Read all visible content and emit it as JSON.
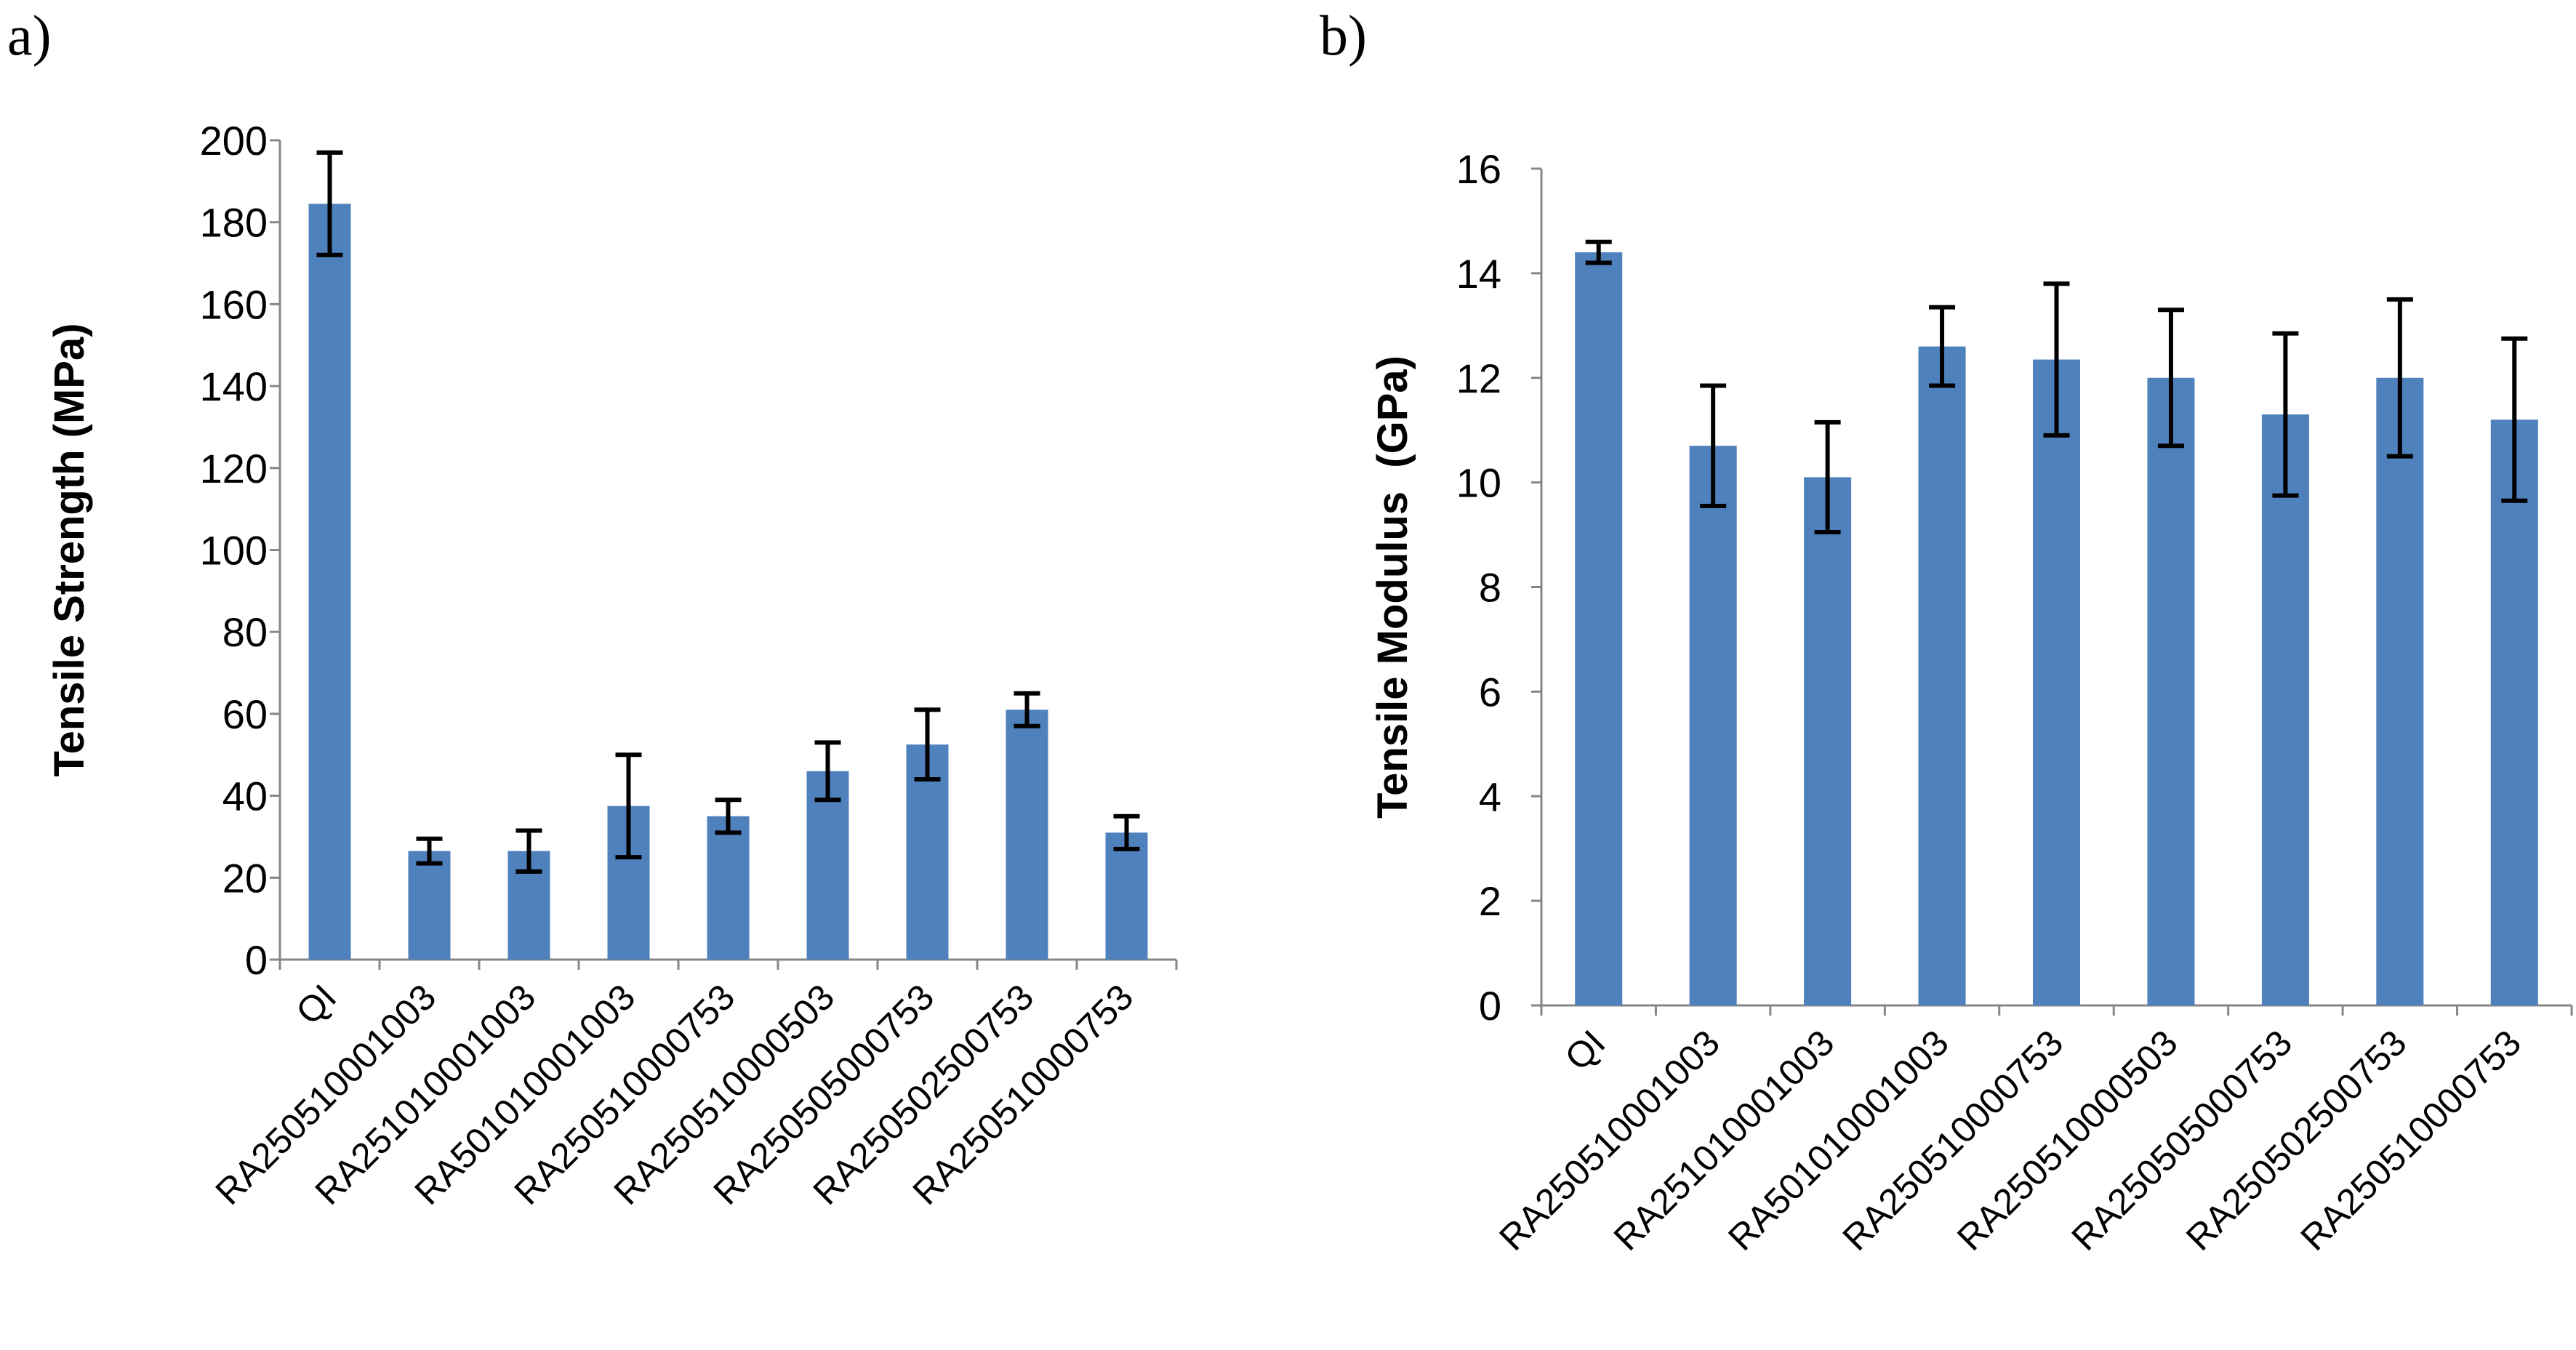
{
  "figure": {
    "panels": [
      "a)",
      "b)"
    ]
  },
  "chart_data": [
    {
      "type": "bar",
      "panel": "a)",
      "title": "",
      "xlabel": "",
      "ylabel": "Tensile Strength (MPa)",
      "ylim": [
        0,
        200
      ],
      "yticks": [
        0,
        20,
        40,
        60,
        80,
        100,
        120,
        140,
        160,
        180,
        200
      ],
      "grid": false,
      "color": "#4F81BD",
      "categories": [
        "QI",
        "RA250510001003",
        "RA251010001003",
        "RA501010001003",
        "RA250510000753",
        "RA250510000503",
        "RA250505000753",
        "RA250502500753",
        "RA250510000753"
      ],
      "values": [
        184.5,
        26.5,
        26.5,
        37.5,
        35,
        46,
        52.5,
        61,
        31
      ],
      "errors": [
        12.5,
        3,
        5,
        12.5,
        4,
        7,
        8.5,
        4,
        4
      ]
    },
    {
      "type": "bar",
      "panel": "b)",
      "title": "",
      "xlabel": "",
      "ylabel": "Tensile Modulus  (GPa)",
      "ylim": [
        0,
        16
      ],
      "yticks": [
        0,
        2,
        4,
        6,
        8,
        10,
        12,
        14,
        16
      ],
      "grid": false,
      "color": "#4F81BD",
      "categories": [
        "QI",
        "RA250510001003",
        "RA251010001003",
        "RA501010001003",
        "RA250510000753",
        "RA250510000503",
        "RA250505000753",
        "RA250502500753",
        "RA250510000753"
      ],
      "values": [
        14.4,
        10.7,
        10.1,
        12.6,
        12.35,
        12.0,
        11.3,
        12.0,
        11.2
      ],
      "errors": [
        0.2,
        1.15,
        1.05,
        0.75,
        1.45,
        1.3,
        1.55,
        1.5,
        1.55
      ]
    }
  ]
}
